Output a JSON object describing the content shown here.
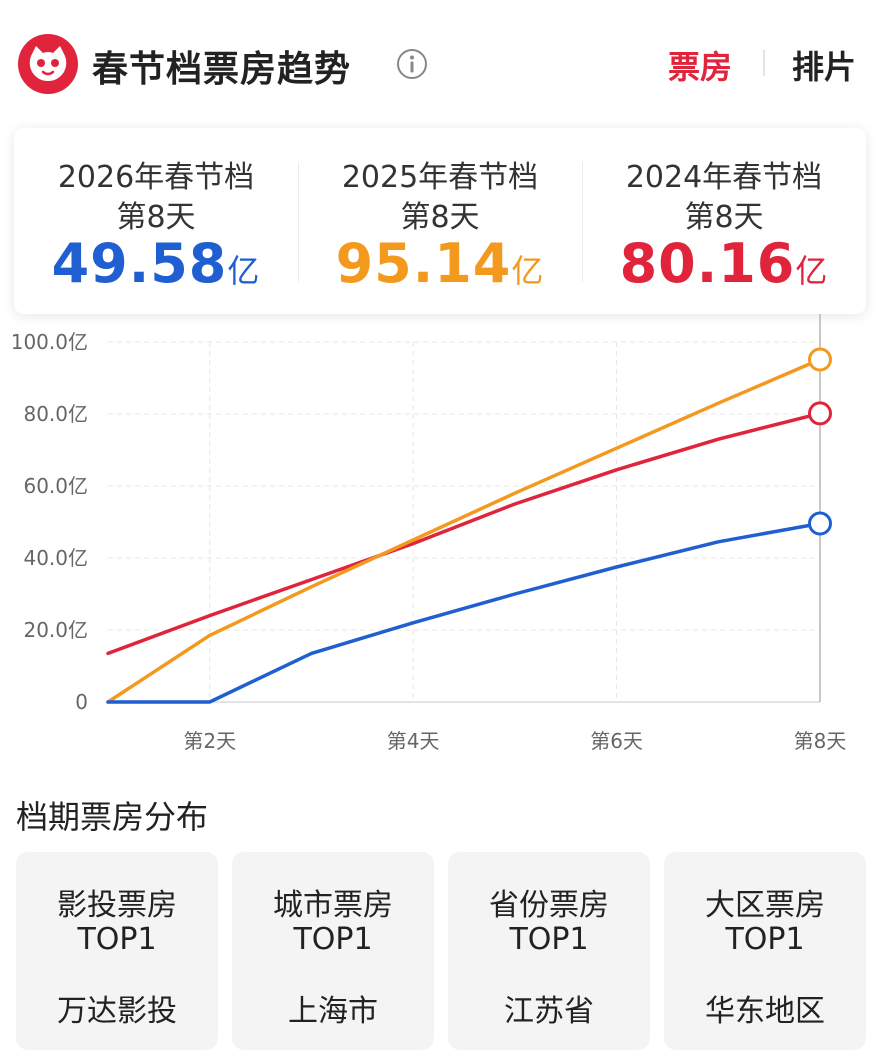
{
  "header": {
    "title": "春节档票房趋势",
    "tabs": [
      {
        "label": "票房",
        "active": true
      },
      {
        "label": "排片",
        "active": false
      }
    ]
  },
  "summary": [
    {
      "year_label": "2026年春节档",
      "day_label": "第8天",
      "value": "49.58",
      "unit": "亿",
      "color": "#1f5fd1"
    },
    {
      "year_label": "2025年春节档",
      "day_label": "第8天",
      "value": "95.14",
      "unit": "亿",
      "color": "#f39a1e"
    },
    {
      "year_label": "2024年春节档",
      "day_label": "第8天",
      "value": "80.16",
      "unit": "亿",
      "color": "#e0243b"
    }
  ],
  "chart_data": {
    "type": "line",
    "x": [
      1,
      2,
      3,
      4,
      5,
      6,
      7,
      8
    ],
    "x_tick_labels": [
      {
        "x": 2,
        "label": "第2天"
      },
      {
        "x": 4,
        "label": "第4天"
      },
      {
        "x": 6,
        "label": "第6天"
      },
      {
        "x": 8,
        "label": "第8天"
      }
    ],
    "y_tick_labels": [
      {
        "y": 0,
        "label": "0"
      },
      {
        "y": 20,
        "label": "20.0亿"
      },
      {
        "y": 40,
        "label": "40.0亿"
      },
      {
        "y": 60,
        "label": "60.0亿"
      },
      {
        "y": 80,
        "label": "80.0亿"
      },
      {
        "y": 100,
        "label": "100.0亿"
      }
    ],
    "ylim": [
      0,
      100
    ],
    "xlim": [
      1,
      8
    ],
    "grid": true,
    "series": [
      {
        "values": [
          13.5,
          24.0,
          34.0,
          44.0,
          55.0,
          64.5,
          73.0,
          80.16
        ],
        "color": "#e0243b"
      },
      {
        "values": [
          0,
          18.5,
          32.0,
          45.0,
          58.0,
          70.5,
          83.0,
          95.14
        ],
        "color": "#f39a1e"
      },
      {
        "values": [
          0,
          0,
          13.5,
          22.0,
          30.0,
          37.5,
          44.5,
          49.58
        ],
        "color": "#1f5fd1"
      }
    ]
  },
  "distribution": {
    "title": "档期票房分布",
    "cards": [
      {
        "line1": "影投票房",
        "line2": "TOP1",
        "value": "万达影投"
      },
      {
        "line1": "城市票房",
        "line2": "TOP1",
        "value": "上海市"
      },
      {
        "line1": "省份票房",
        "line2": "TOP1",
        "value": "江苏省"
      },
      {
        "line1": "大区票房",
        "line2": "TOP1",
        "value": "华东地区"
      }
    ]
  }
}
